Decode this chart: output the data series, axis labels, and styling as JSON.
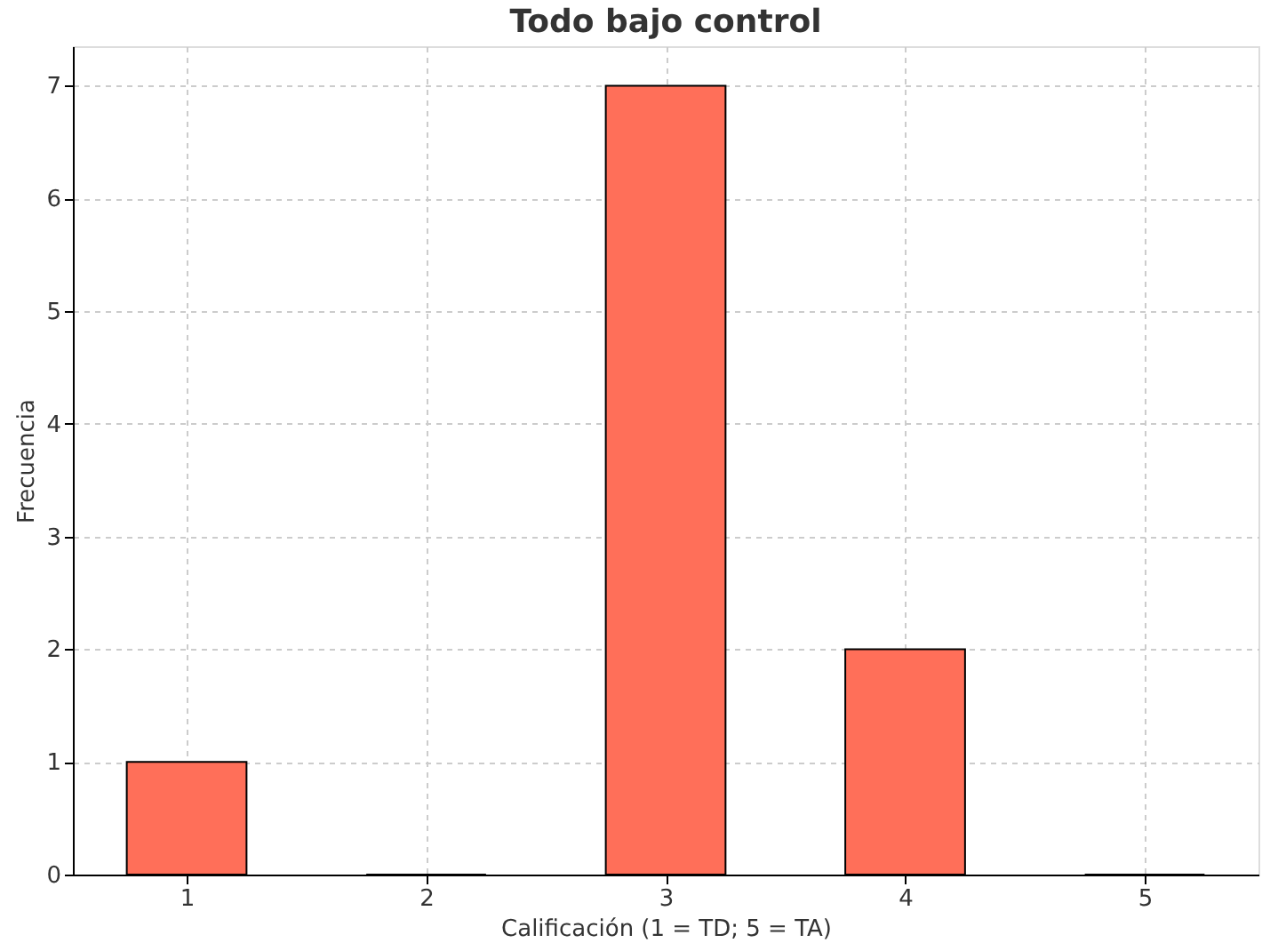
{
  "chart_data": {
    "type": "bar",
    "title": "Todo bajo control",
    "xlabel": "Calificación (1 = TD; 5 = TA)",
    "ylabel": "Frecuencia",
    "x": [
      1,
      2,
      3,
      4,
      5
    ],
    "values": [
      1,
      0,
      7,
      2,
      0
    ],
    "color": "#ff6f59",
    "xlim": [
      0.525,
      5.475
    ],
    "xticks": [
      1,
      2,
      3,
      4,
      5
    ],
    "ylim": [
      0,
      7.35
    ],
    "yticks": [
      0,
      1,
      2,
      3,
      4,
      5,
      6,
      7
    ],
    "grid": true
  }
}
